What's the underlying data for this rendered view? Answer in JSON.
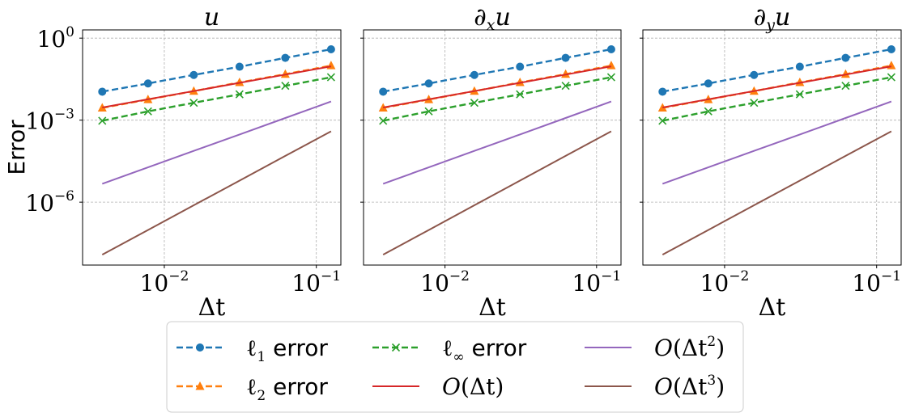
{
  "chart_data": [
    {
      "type": "line",
      "title": "u",
      "xlabel": "Δt",
      "ylabel": "Error",
      "xscale": "log",
      "yscale": "log",
      "xlim": [
        0.0029,
        0.145
      ],
      "ylim": [
        5e-09,
        2.0
      ],
      "x_ticks": [
        {
          "value": 0.01,
          "base": "10",
          "exp": "−2"
        },
        {
          "value": 0.1,
          "base": "10",
          "exp": "−1"
        }
      ],
      "y_ticks": [
        {
          "value": 1e-06,
          "base": "10",
          "exp": "−6"
        },
        {
          "value": 0.001,
          "base": "10",
          "exp": "−3"
        },
        {
          "value": 1,
          "base": "10",
          "exp": "0"
        }
      ],
      "grid": true,
      "x": [
        0.00390625,
        0.0078125,
        0.015625,
        0.03125,
        0.0625,
        0.125
      ],
      "series": [
        {
          "name": "ℓ1 error",
          "style": "dashed",
          "marker": "circle",
          "color": "#1f77b4",
          "values": [
            0.011,
            0.022,
            0.045,
            0.09,
            0.19,
            0.39
          ]
        },
        {
          "name": "ℓ2 error",
          "style": "dashed",
          "marker": "triangle",
          "color": "#ff7f0e",
          "values": [
            0.0028,
            0.0057,
            0.0115,
            0.024,
            0.048,
            0.099
          ]
        },
        {
          "name": "ℓ∞ error",
          "style": "dashed",
          "marker": "x",
          "color": "#2ca02c",
          "values": [
            0.00095,
            0.0021,
            0.0043,
            0.0088,
            0.018,
            0.037
          ]
        },
        {
          "name": "O(Δt)",
          "style": "solid",
          "marker": "none",
          "color": "#d62728",
          "values": [
            0.0029,
            0.0058,
            0.0116,
            0.0232,
            0.0464,
            0.0928
          ]
        },
        {
          "name": "O(Δt²)",
          "style": "solid",
          "marker": "none",
          "color": "#9467bd",
          "values": [
            4.7e-06,
            1.88e-05,
            7.52e-05,
            0.0003,
            0.0012,
            0.0048
          ]
        },
        {
          "name": "O(Δt³)",
          "style": "solid",
          "marker": "none",
          "color": "#8c564b",
          "values": [
            1.2e-08,
            9.6e-08,
            7.68e-07,
            6.14e-06,
            4.92e-05,
            0.00039
          ]
        }
      ]
    },
    {
      "type": "line",
      "title": "∂xu",
      "xlabel": "Δt",
      "xscale": "log",
      "yscale": "log",
      "xlim": [
        0.0029,
        0.145
      ],
      "ylim": [
        5e-09,
        2.0
      ],
      "x_ticks": [
        {
          "value": 0.01,
          "base": "10",
          "exp": "−2"
        },
        {
          "value": 0.1,
          "base": "10",
          "exp": "−1"
        }
      ],
      "grid": true,
      "x": [
        0.00390625,
        0.0078125,
        0.015625,
        0.03125,
        0.0625,
        0.125
      ],
      "series": [
        {
          "name": "ℓ1 error",
          "style": "dashed",
          "marker": "circle",
          "color": "#1f77b4",
          "values": [
            0.011,
            0.022,
            0.045,
            0.09,
            0.19,
            0.39
          ]
        },
        {
          "name": "ℓ2 error",
          "style": "dashed",
          "marker": "triangle",
          "color": "#ff7f0e",
          "values": [
            0.0028,
            0.0057,
            0.0115,
            0.024,
            0.048,
            0.099
          ]
        },
        {
          "name": "ℓ∞ error",
          "style": "dashed",
          "marker": "x",
          "color": "#2ca02c",
          "values": [
            0.00095,
            0.0021,
            0.0043,
            0.0088,
            0.018,
            0.037
          ]
        },
        {
          "name": "O(Δt)",
          "style": "solid",
          "marker": "none",
          "color": "#d62728",
          "values": [
            0.0029,
            0.0058,
            0.0116,
            0.0232,
            0.0464,
            0.0928
          ]
        },
        {
          "name": "O(Δt²)",
          "style": "solid",
          "marker": "none",
          "color": "#9467bd",
          "values": [
            4.7e-06,
            1.88e-05,
            7.52e-05,
            0.0003,
            0.0012,
            0.0048
          ]
        },
        {
          "name": "O(Δt³)",
          "style": "solid",
          "marker": "none",
          "color": "#8c564b",
          "values": [
            1.2e-08,
            9.6e-08,
            7.68e-07,
            6.14e-06,
            4.92e-05,
            0.00039
          ]
        }
      ]
    },
    {
      "type": "line",
      "title": "∂yu",
      "xlabel": "Δt",
      "xscale": "log",
      "yscale": "log",
      "xlim": [
        0.0029,
        0.145
      ],
      "ylim": [
        5e-09,
        2.0
      ],
      "x_ticks": [
        {
          "value": 0.01,
          "base": "10",
          "exp": "−2"
        },
        {
          "value": 0.1,
          "base": "10",
          "exp": "−1"
        }
      ],
      "grid": true,
      "x": [
        0.00390625,
        0.0078125,
        0.015625,
        0.03125,
        0.0625,
        0.125
      ],
      "series": [
        {
          "name": "ℓ1 error",
          "style": "dashed",
          "marker": "circle",
          "color": "#1f77b4",
          "values": [
            0.011,
            0.022,
            0.045,
            0.09,
            0.19,
            0.39
          ]
        },
        {
          "name": "ℓ2 error",
          "style": "dashed",
          "marker": "triangle",
          "color": "#ff7f0e",
          "values": [
            0.0028,
            0.0057,
            0.0115,
            0.024,
            0.048,
            0.099
          ]
        },
        {
          "name": "ℓ∞ error",
          "style": "dashed",
          "marker": "x",
          "color": "#2ca02c",
          "values": [
            0.00095,
            0.0021,
            0.0043,
            0.0088,
            0.018,
            0.037
          ]
        },
        {
          "name": "O(Δt)",
          "style": "solid",
          "marker": "none",
          "color": "#d62728",
          "values": [
            0.0029,
            0.0058,
            0.0116,
            0.0232,
            0.0464,
            0.0928
          ]
        },
        {
          "name": "O(Δt²)",
          "style": "solid",
          "marker": "none",
          "color": "#9467bd",
          "values": [
            4.7e-06,
            1.88e-05,
            7.52e-05,
            0.0003,
            0.0012,
            0.0048
          ]
        },
        {
          "name": "O(Δt³)",
          "style": "solid",
          "marker": "none",
          "color": "#8c564b",
          "values": [
            1.2e-08,
            9.6e-08,
            7.68e-07,
            6.14e-06,
            4.92e-05,
            0.00039
          ]
        }
      ]
    }
  ],
  "legend": {
    "placement": "bottom-center",
    "columns": 3,
    "entries": [
      {
        "label": "ℓ1 error",
        "color": "#1f77b4",
        "style": "dashed",
        "marker": "circle"
      },
      {
        "label": "ℓ2 error",
        "color": "#ff7f0e",
        "style": "dashed",
        "marker": "triangle"
      },
      {
        "label": "ℓ∞ error",
        "color": "#2ca02c",
        "style": "dashed",
        "marker": "x"
      },
      {
        "label": "O(Δt)",
        "color": "#d62728",
        "style": "solid",
        "marker": "none"
      },
      {
        "label": "O(Δt²)",
        "color": "#9467bd",
        "style": "solid",
        "marker": "none"
      },
      {
        "label": "O(Δt³)",
        "color": "#8c564b",
        "style": "solid",
        "marker": "none"
      }
    ]
  }
}
